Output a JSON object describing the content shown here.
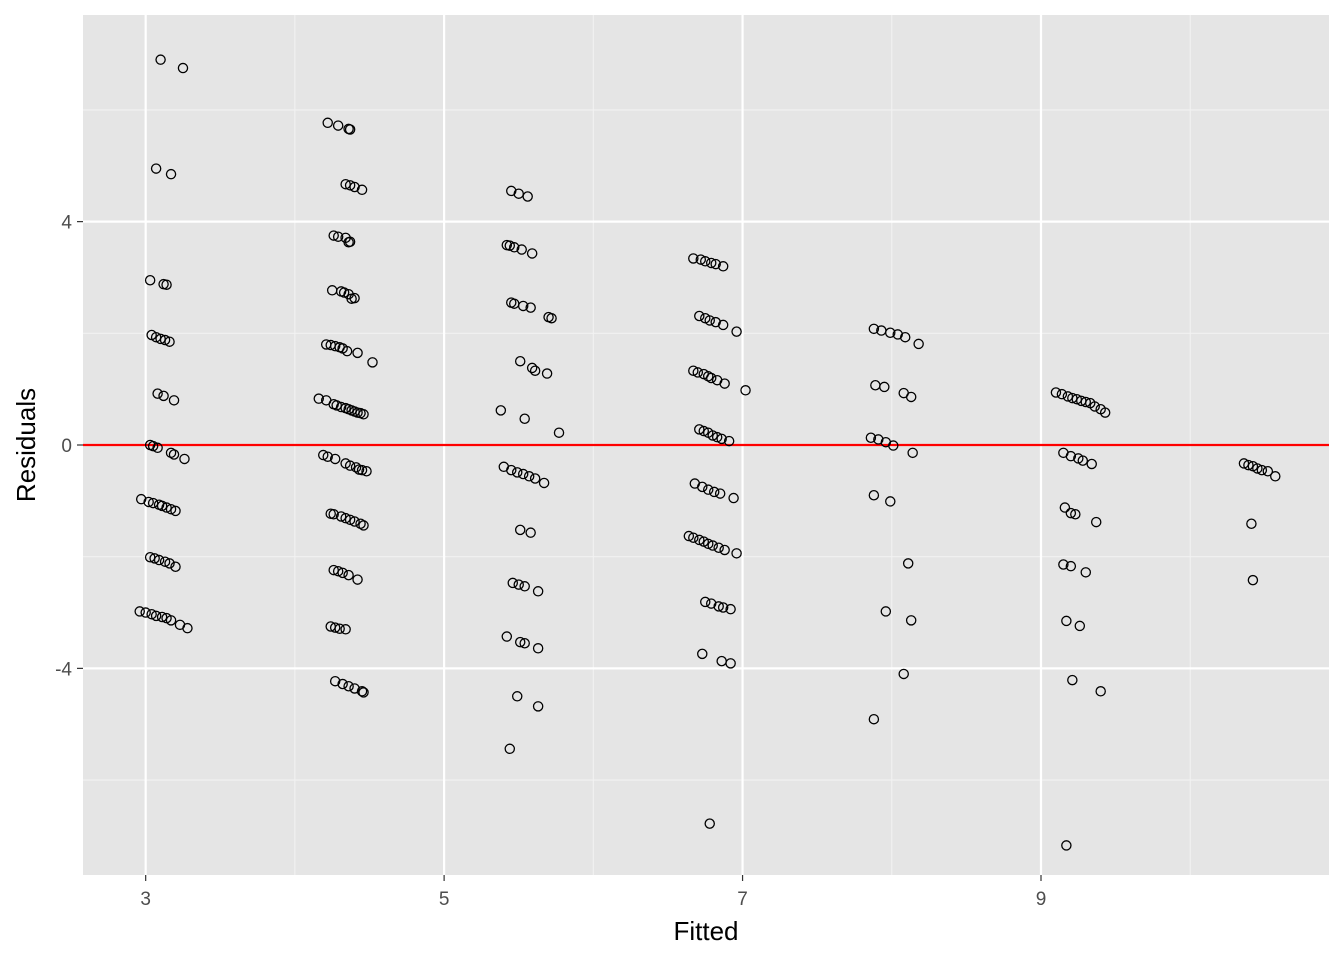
{
  "chart_data": {
    "type": "scatter",
    "title": "",
    "xlabel": "Fitted",
    "ylabel": "Residuals",
    "xlim": [
      2.58,
      10.93
    ],
    "ylim": [
      -7.7,
      7.7
    ],
    "x_ticks": [
      3,
      5,
      7,
      9
    ],
    "x_tick_labels": [
      "3",
      "5",
      "7",
      "9"
    ],
    "x_minor_ticks": [
      4,
      6,
      8,
      10
    ],
    "y_ticks": [
      -4,
      0,
      4
    ],
    "y_tick_labels": [
      "-4",
      "0",
      "4"
    ],
    "y_minor_ticks": [
      -6,
      -2,
      2,
      6
    ],
    "grid": true,
    "panel_color": "#e5e5e5",
    "reference_line": {
      "y": 0,
      "color": "#ff0000"
    },
    "series": [
      {
        "marker": "open-circle",
        "x": [
          3.1,
          3.25,
          3.07,
          3.17,
          3.03,
          3.12,
          3.14,
          3.04,
          3.07,
          3.1,
          3.13,
          3.16,
          3.08,
          3.12,
          3.19,
          3.03,
          3.05,
          3.08,
          3.17,
          3.19,
          3.26,
          2.97,
          3.02,
          3.05,
          3.09,
          3.11,
          3.14,
          3.17,
          3.2,
          3.03,
          3.06,
          3.09,
          3.13,
          3.16,
          3.2,
          2.96,
          3.0,
          3.04,
          3.07,
          3.11,
          3.14,
          3.17,
          3.23,
          3.28,
          4.22,
          4.29,
          4.36,
          4.37,
          4.34,
          4.37,
          4.4,
          4.45,
          4.26,
          4.29,
          4.34,
          4.37,
          4.36,
          4.25,
          4.31,
          4.33,
          4.36,
          4.4,
          4.38,
          4.21,
          4.24,
          4.27,
          4.3,
          4.32,
          4.35,
          4.42,
          4.52,
          4.16,
          4.21,
          4.26,
          4.28,
          4.31,
          4.34,
          4.36,
          4.38,
          4.4,
          4.42,
          4.44,
          4.46,
          4.19,
          4.22,
          4.27,
          4.34,
          4.37,
          4.41,
          4.43,
          4.45,
          4.48,
          4.24,
          4.26,
          4.31,
          4.34,
          4.37,
          4.4,
          4.44,
          4.46,
          4.26,
          4.29,
          4.32,
          4.36,
          4.42,
          4.24,
          4.27,
          4.3,
          4.34,
          4.27,
          4.32,
          4.36,
          4.4,
          4.45,
          4.46,
          5.45,
          5.5,
          5.56,
          5.42,
          5.44,
          5.47,
          5.52,
          5.59,
          5.45,
          5.47,
          5.53,
          5.58,
          5.7,
          5.72,
          5.51,
          5.59,
          5.61,
          5.69,
          5.38,
          5.54,
          5.77,
          5.4,
          5.45,
          5.49,
          5.53,
          5.57,
          5.61,
          5.67,
          5.51,
          5.58,
          5.46,
          5.5,
          5.54,
          5.63,
          5.42,
          5.51,
          5.54,
          5.63,
          5.49,
          5.63,
          5.44,
          6.67,
          6.72,
          6.75,
          6.79,
          6.82,
          6.87,
          6.71,
          6.75,
          6.78,
          6.82,
          6.87,
          6.96,
          6.67,
          6.7,
          6.74,
          6.77,
          6.79,
          6.83,
          6.88,
          7.02,
          6.71,
          6.74,
          6.77,
          6.8,
          6.83,
          6.86,
          6.91,
          6.68,
          6.73,
          6.77,
          6.81,
          6.85,
          6.94,
          6.64,
          6.67,
          6.71,
          6.74,
          6.77,
          6.8,
          6.84,
          6.88,
          6.96,
          6.75,
          6.79,
          6.84,
          6.87,
          6.92,
          6.73,
          6.86,
          6.92,
          6.78,
          7.88,
          7.93,
          7.99,
          8.04,
          8.09,
          8.18,
          7.89,
          7.95,
          8.08,
          8.13,
          7.86,
          7.91,
          7.96,
          8.01,
          8.14,
          7.88,
          7.99,
          8.11,
          7.96,
          8.13,
          8.08,
          7.88,
          9.1,
          9.14,
          9.18,
          9.21,
          9.24,
          9.27,
          9.3,
          9.33,
          9.36,
          9.4,
          9.43,
          9.15,
          9.2,
          9.25,
          9.28,
          9.34,
          9.16,
          9.2,
          9.23,
          9.37,
          9.15,
          9.2,
          9.3,
          9.17,
          9.26,
          9.21,
          9.4,
          9.17,
          10.36,
          10.39,
          10.42,
          10.45,
          10.48,
          10.52,
          10.57,
          10.41,
          10.42
        ],
        "y": [
          6.9,
          6.75,
          4.95,
          4.85,
          2.95,
          2.88,
          2.87,
          1.97,
          1.93,
          1.9,
          1.88,
          1.85,
          0.92,
          0.88,
          0.8,
          0.0,
          -0.02,
          -0.05,
          -0.14,
          -0.17,
          -0.25,
          -0.97,
          -1.02,
          -1.04,
          -1.07,
          -1.09,
          -1.12,
          -1.15,
          -1.18,
          -2.01,
          -2.03,
          -2.06,
          -2.09,
          -2.12,
          -2.18,
          -2.98,
          -3.0,
          -3.03,
          -3.06,
          -3.08,
          -3.1,
          -3.14,
          -3.22,
          -3.28,
          5.77,
          5.72,
          5.66,
          5.65,
          4.67,
          4.65,
          4.62,
          4.57,
          3.75,
          3.73,
          3.71,
          3.64,
          3.63,
          2.77,
          2.75,
          2.73,
          2.7,
          2.63,
          2.62,
          1.8,
          1.79,
          1.77,
          1.75,
          1.73,
          1.68,
          1.65,
          1.48,
          0.83,
          0.8,
          0.73,
          0.71,
          0.68,
          0.66,
          0.64,
          0.62,
          0.6,
          0.58,
          0.57,
          0.55,
          -0.18,
          -0.21,
          -0.25,
          -0.33,
          -0.37,
          -0.4,
          -0.44,
          -0.45,
          -0.47,
          -1.23,
          -1.24,
          -1.28,
          -1.31,
          -1.34,
          -1.37,
          -1.41,
          -1.44,
          -2.24,
          -2.26,
          -2.29,
          -2.33,
          -2.41,
          -3.25,
          -3.27,
          -3.29,
          -3.3,
          -4.23,
          -4.28,
          -4.32,
          -4.36,
          -4.41,
          -4.43,
          4.55,
          4.5,
          4.45,
          3.58,
          3.57,
          3.54,
          3.5,
          3.43,
          2.55,
          2.53,
          2.49,
          2.46,
          2.29,
          2.27,
          1.5,
          1.38,
          1.33,
          1.28,
          0.62,
          0.47,
          0.22,
          -0.39,
          -0.45,
          -0.49,
          -0.52,
          -0.56,
          -0.6,
          -0.68,
          -1.52,
          -1.57,
          -2.47,
          -2.5,
          -2.53,
          -2.62,
          -3.43,
          -3.53,
          -3.55,
          -3.64,
          -4.5,
          -4.68,
          -5.44,
          3.34,
          3.32,
          3.29,
          3.26,
          3.24,
          3.2,
          2.31,
          2.27,
          2.23,
          2.2,
          2.15,
          2.03,
          1.33,
          1.3,
          1.27,
          1.23,
          1.2,
          1.16,
          1.1,
          0.98,
          0.28,
          0.25,
          0.22,
          0.17,
          0.14,
          0.11,
          0.07,
          -0.69,
          -0.75,
          -0.8,
          -0.84,
          -0.87,
          -0.95,
          -1.63,
          -1.66,
          -1.7,
          -1.73,
          -1.77,
          -1.8,
          -1.84,
          -1.88,
          -1.94,
          -2.81,
          -2.84,
          -2.89,
          -2.91,
          -2.94,
          -3.74,
          -3.87,
          -3.91,
          -6.78,
          2.08,
          2.05,
          2.01,
          1.98,
          1.93,
          1.81,
          1.07,
          1.04,
          0.93,
          0.86,
          0.13,
          0.1,
          0.05,
          -0.01,
          -0.14,
          -0.9,
          -1.01,
          -2.12,
          -2.98,
          -3.14,
          -4.1,
          -4.91,
          0.94,
          0.91,
          0.87,
          0.84,
          0.82,
          0.79,
          0.77,
          0.75,
          0.69,
          0.64,
          0.58,
          -0.14,
          -0.2,
          -0.24,
          -0.28,
          -0.34,
          -1.12,
          -1.22,
          -1.24,
          -1.38,
          -2.14,
          -2.17,
          -2.28,
          -3.15,
          -3.24,
          -4.21,
          -4.41,
          -7.17,
          -0.33,
          -0.36,
          -0.38,
          -0.42,
          -0.45,
          -0.47,
          -0.56,
          -1.41,
          -2.42
        ]
      }
    ]
  }
}
